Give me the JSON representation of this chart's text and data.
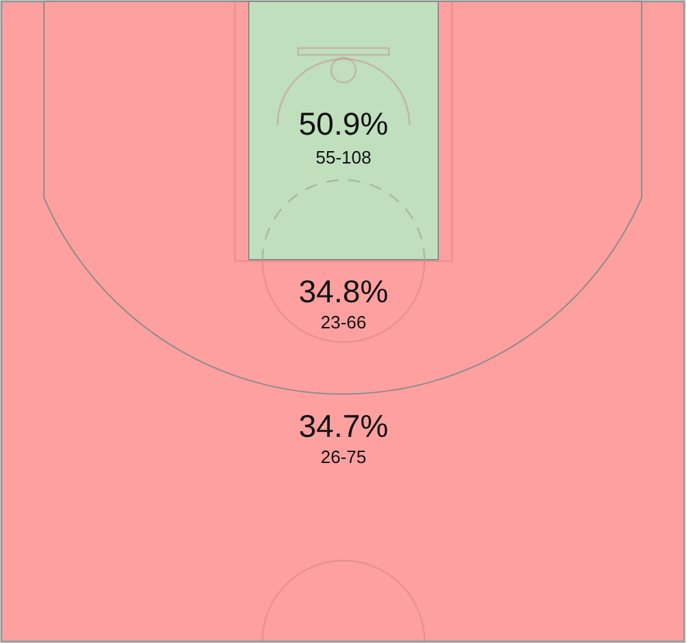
{
  "chart_data": {
    "type": "other",
    "categories": [
      null,
      null,
      null
    ],
    "values": [
      50.9,
      34.8,
      34.7
    ],
    "value_labels": [
      "50.9%",
      "34.8%",
      "34.7%"
    ],
    "colors": [
      "#bfdfbd",
      "#ffa0a0",
      "#ffa0a0"
    ],
    "annotations": [
      "55-108",
      "23-66",
      "26-75"
    ]
  }
}
